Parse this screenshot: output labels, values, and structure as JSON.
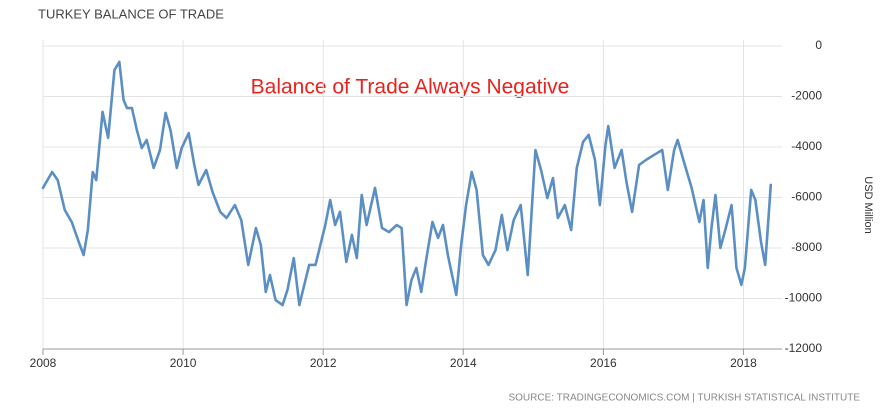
{
  "chart_data": {
    "type": "line",
    "title": "TURKEY BALANCE OF TRADE",
    "annotation": "Balance of Trade Always Negative",
    "y_axis_label": "USD Million",
    "source": "SOURCE: TRADINGECONOMICS.COM | TURKISH STATISTICAL INSTITUTE",
    "xlim": [
      2008,
      2018.55
    ],
    "xticks": [
      2008,
      2010,
      2012,
      2014,
      2016,
      2018
    ],
    "ylim": [
      -12000,
      0
    ],
    "yticks": [
      0,
      -2000,
      -4000,
      -6000,
      -8000,
      -10000,
      -12000
    ],
    "y_axis_side": "right",
    "grid": true,
    "x": [
      2008.0,
      2008.13,
      2008.21,
      2008.31,
      2008.41,
      2008.5,
      2008.58,
      2008.64,
      2008.71,
      2008.76,
      2008.85,
      2008.93,
      2009.02,
      2009.09,
      2009.15,
      2009.2,
      2009.27,
      2009.34,
      2009.41,
      2009.48,
      2009.58,
      2009.67,
      2009.75,
      2009.82,
      2009.91,
      2009.98,
      2010.08,
      2010.16,
      2010.22,
      2010.33,
      2010.42,
      2010.53,
      2010.62,
      2010.74,
      2010.83,
      2010.93,
      2011.04,
      2011.11,
      2011.18,
      2011.24,
      2011.32,
      2011.42,
      2011.49,
      2011.58,
      2011.66,
      2011.73,
      2011.8,
      2011.89,
      2011.96,
      2012.03,
      2012.1,
      2012.17,
      2012.24,
      2012.33,
      2012.41,
      2012.48,
      2012.55,
      2012.62,
      2012.74,
      2012.84,
      2012.94,
      2013.05,
      2013.12,
      2013.19,
      2013.26,
      2013.33,
      2013.4,
      2013.47,
      2013.56,
      2013.64,
      2013.71,
      2013.78,
      2013.9,
      2013.97,
      2014.04,
      2014.12,
      2014.19,
      2014.28,
      2014.36,
      2014.46,
      2014.55,
      2014.63,
      2014.72,
      2014.82,
      2014.92,
      2015.03,
      2015.11,
      2015.2,
      2015.28,
      2015.35,
      2015.45,
      2015.54,
      2015.62,
      2015.71,
      2015.79,
      2015.88,
      2015.95,
      2016.03,
      2016.07,
      2016.16,
      2016.26,
      2016.33,
      2016.41,
      2016.51,
      2016.61,
      2016.72,
      2016.84,
      2016.92,
      2017.01,
      2017.06,
      2017.15,
      2017.26,
      2017.37,
      2017.43,
      2017.49,
      2017.54,
      2017.6,
      2017.67,
      2017.74,
      2017.83,
      2017.9,
      2017.97,
      2018.02,
      2018.11,
      2018.17,
      2018.25,
      2018.31,
      2018.39
    ],
    "series": [
      {
        "color": "#5b8fc4",
        "values": [
          -5620,
          -4990,
          -5310,
          -6490,
          -6970,
          -7680,
          -8280,
          -7290,
          -4990,
          -5310,
          -2610,
          -3640,
          -950,
          -630,
          -2140,
          -2460,
          -2460,
          -3330,
          -4040,
          -3720,
          -4830,
          -4120,
          -2650,
          -3330,
          -4830,
          -4040,
          -3450,
          -4710,
          -5500,
          -4910,
          -5780,
          -6570,
          -6810,
          -6300,
          -6890,
          -8670,
          -7210,
          -7880,
          -9740,
          -9070,
          -10060,
          -10260,
          -9660,
          -8400,
          -10260,
          -9460,
          -8670,
          -8670,
          -7880,
          -7090,
          -6100,
          -7090,
          -6570,
          -8550,
          -7480,
          -8400,
          -5900,
          -7090,
          -5620,
          -7210,
          -7370,
          -7090,
          -7210,
          -10260,
          -9270,
          -8790,
          -9740,
          -8470,
          -6970,
          -7600,
          -7090,
          -8280,
          -9860,
          -7880,
          -6300,
          -4990,
          -5700,
          -8280,
          -8670,
          -8080,
          -6690,
          -8080,
          -6890,
          -6300,
          -9070,
          -4120,
          -4910,
          -6020,
          -5230,
          -6810,
          -6300,
          -7290,
          -4830,
          -3800,
          -3520,
          -4510,
          -6300,
          -3920,
          -3170,
          -4830,
          -4120,
          -5390,
          -6570,
          -4710,
          -4510,
          -4320,
          -4120,
          -5700,
          -4120,
          -3720,
          -4590,
          -5620,
          -6970,
          -6100,
          -8790,
          -7290,
          -5900,
          -8000,
          -7290,
          -6300,
          -8790,
          -9460,
          -8790,
          -5700,
          -6100,
          -7760,
          -8670,
          -5500
        ]
      }
    ]
  }
}
